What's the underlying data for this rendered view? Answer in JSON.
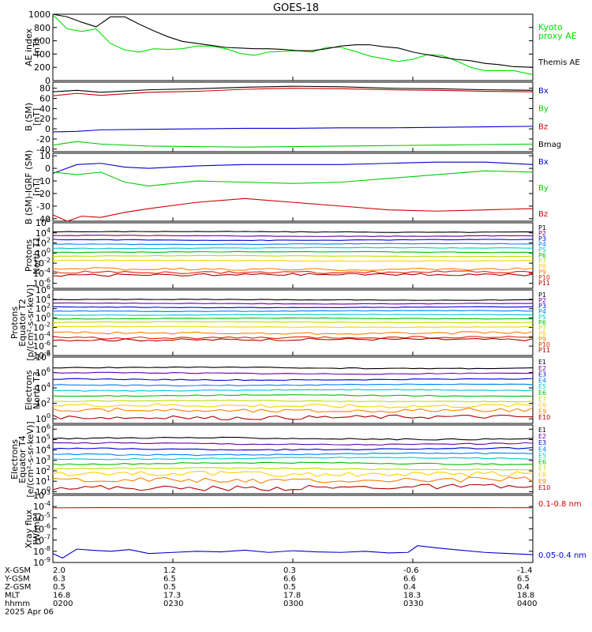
{
  "title": "GOES-18",
  "chart_data": [
    {
      "id": "ae",
      "type": "line",
      "ylabel": [
        "AE index",
        "[nT]"
      ],
      "yticks": [
        "1000",
        "800",
        "600",
        "400",
        "200",
        "0"
      ],
      "yscale": "linear",
      "ylim": [
        0,
        1000
      ],
      "series": [
        {
          "name": "Kyoto\nproxy AE",
          "color": "#00e000",
          "x": [
            0,
            0.03,
            0.06,
            0.09,
            0.12,
            0.15,
            0.18,
            0.21,
            0.24,
            0.27,
            0.3,
            0.33,
            0.36,
            0.39,
            0.42,
            0.45,
            0.48,
            0.51,
            0.54,
            0.57,
            0.6,
            0.63,
            0.66,
            0.69,
            0.72,
            0.75,
            0.78,
            0.81,
            0.84,
            0.87,
            0.9,
            0.93,
            0.96,
            1.0
          ],
          "y": [
            990,
            780,
            740,
            780,
            560,
            460,
            430,
            480,
            470,
            480,
            520,
            520,
            480,
            410,
            380,
            430,
            440,
            450,
            430,
            500,
            500,
            440,
            370,
            330,
            290,
            320,
            390,
            380,
            300,
            200,
            150,
            150,
            150,
            90
          ]
        },
        {
          "name": "Themis AE",
          "color": "#000000",
          "x": [
            0,
            0.03,
            0.06,
            0.09,
            0.12,
            0.15,
            0.18,
            0.21,
            0.24,
            0.27,
            0.3,
            0.33,
            0.36,
            0.39,
            0.42,
            0.45,
            0.48,
            0.51,
            0.54,
            0.57,
            0.6,
            0.63,
            0.66,
            0.69,
            0.72,
            0.75,
            0.78,
            0.81,
            0.84,
            0.87,
            0.9,
            0.93,
            0.96,
            1.0
          ],
          "y": [
            1000,
            960,
            880,
            810,
            960,
            960,
            850,
            750,
            660,
            590,
            560,
            530,
            500,
            490,
            480,
            480,
            470,
            450,
            450,
            480,
            520,
            540,
            540,
            510,
            490,
            430,
            390,
            350,
            320,
            300,
            260,
            240,
            210,
            200
          ]
        }
      ]
    },
    {
      "id": "bsm",
      "type": "line",
      "ylabel": [
        "B (SM)",
        "[nT]"
      ],
      "yticks": [
        "80",
        "60",
        "40",
        "20",
        "0",
        "-20",
        "-40"
      ],
      "yscale": "linear",
      "ylim": [
        -45,
        92
      ],
      "series": [
        {
          "name": "Bx",
          "color": "#0000cc",
          "x": [
            0,
            0.05,
            0.1,
            0.2,
            0.3,
            0.4,
            0.5,
            0.6,
            0.7,
            0.8,
            0.9,
            1.0
          ],
          "y": [
            -6,
            -5,
            -2,
            -1,
            0,
            1,
            1,
            2,
            2,
            3,
            4,
            5
          ]
        },
        {
          "name": "By",
          "color": "#00cc00",
          "x": [
            0,
            0.05,
            0.1,
            0.2,
            0.3,
            0.4,
            0.5,
            0.6,
            0.7,
            0.8,
            0.9,
            1.0
          ],
          "y": [
            -32,
            -25,
            -30,
            -34,
            -35,
            -36,
            -35,
            -34,
            -33,
            -32,
            -31,
            -30
          ]
        },
        {
          "name": "Bz",
          "color": "#cc0000",
          "x": [
            0,
            0.05,
            0.1,
            0.2,
            0.3,
            0.4,
            0.5,
            0.6,
            0.7,
            0.8,
            0.9,
            1.0
          ],
          "y": [
            65,
            70,
            66,
            72,
            74,
            78,
            80,
            79,
            77,
            76,
            74,
            73
          ]
        },
        {
          "name": "Bmag",
          "color": "#000000",
          "x": [
            0,
            0.05,
            0.1,
            0.2,
            0.3,
            0.4,
            0.5,
            0.6,
            0.7,
            0.8,
            0.9,
            1.0
          ],
          "y": [
            73,
            76,
            72,
            77,
            79,
            82,
            84,
            83,
            80,
            79,
            77,
            76
          ]
        }
      ]
    },
    {
      "id": "bigrf",
      "type": "line",
      "ylabel": [
        "B (SM)-IGRF (SM)",
        "[nT]"
      ],
      "yticks": [
        "10",
        "0",
        "-10",
        "-20",
        "-30",
        "-40"
      ],
      "yscale": "linear",
      "ylim": [
        -42,
        12
      ],
      "series": [
        {
          "name": "Bx",
          "color": "#0000cc",
          "x": [
            0,
            0.05,
            0.1,
            0.15,
            0.2,
            0.3,
            0.4,
            0.5,
            0.6,
            0.7,
            0.8,
            0.9,
            1.0
          ],
          "y": [
            -4,
            3,
            4,
            1,
            0,
            2,
            3,
            3,
            3,
            4,
            5,
            5,
            3
          ]
        },
        {
          "name": "By",
          "color": "#00cc00",
          "x": [
            0,
            0.05,
            0.1,
            0.15,
            0.2,
            0.3,
            0.4,
            0.5,
            0.6,
            0.7,
            0.8,
            0.9,
            1.0
          ],
          "y": [
            -3,
            -5,
            -3,
            -11,
            -14,
            -10,
            -11,
            -12,
            -11,
            -8,
            -5,
            -2,
            -3
          ]
        },
        {
          "name": "Bz",
          "color": "#cc0000",
          "x": [
            0,
            0.03,
            0.06,
            0.1,
            0.15,
            0.2,
            0.3,
            0.4,
            0.5,
            0.6,
            0.7,
            0.8,
            0.9,
            1.0
          ],
          "y": [
            -37,
            -42,
            -38,
            -39,
            -35,
            -32,
            -27,
            -24,
            -27,
            -30,
            -33,
            -34,
            -33,
            -32
          ]
        }
      ]
    },
    {
      "id": "protT1",
      "type": "line",
      "ylabel": [
        "Protons",
        "North T1"
      ],
      "yticks": [
        "10^6",
        "10^4",
        "10^2",
        "10^0",
        "10^-2",
        "10^-4",
        "10^-6"
      ],
      "yscale": "log",
      "ylim": [
        -7,
        6
      ],
      "series": [
        {
          "name": "P1",
          "color": "#000000",
          "level": 4.2
        },
        {
          "name": "P2",
          "color": "#6a00a0",
          "level": 3.4
        },
        {
          "name": "P3",
          "color": "#0000dd",
          "level": 2.6
        },
        {
          "name": "P4",
          "color": "#0080ff",
          "level": 1.8
        },
        {
          "name": "P5",
          "color": "#00c8c8",
          "level": 1.0
        },
        {
          "name": "P6",
          "color": "#00c000",
          "level": 0.2
        },
        {
          "name": "P7",
          "color": "#b8e000",
          "level": -0.6
        },
        {
          "name": "P8",
          "color": "#ffd000",
          "level": -1.5
        },
        {
          "name": "P9",
          "color": "#ff8000",
          "level": -3.2
        },
        {
          "name": "P10",
          "color": "#ee2000",
          "level": -3.8
        },
        {
          "name": "P11",
          "color": "#b00000",
          "level": -4.3
        }
      ]
    },
    {
      "id": "protT2",
      "type": "line",
      "ylabel": [
        "Protons",
        "Equator T2",
        "[p/(cm²-s-sr-keV)]"
      ],
      "yticks": [
        "10^6",
        "10^4",
        "10^2",
        "10^0",
        "10^-2",
        "10^-4",
        "10^-6",
        "10^-8"
      ],
      "yscale": "log",
      "ylim": [
        -8,
        6
      ],
      "series": [
        {
          "name": "P1",
          "color": "#000000",
          "level": 3.9
        },
        {
          "name": "P2",
          "color": "#6a00a0",
          "level": 3.1
        },
        {
          "name": "P3",
          "color": "#0000dd",
          "level": 2.3
        },
        {
          "name": "P4",
          "color": "#0080ff",
          "level": 1.5
        },
        {
          "name": "P5",
          "color": "#00c8c8",
          "level": 0.7
        },
        {
          "name": "P6",
          "color": "#00c000",
          "level": -0.1
        },
        {
          "name": "P7",
          "color": "#b8e000",
          "level": -0.9
        },
        {
          "name": "P8",
          "color": "#ffd000",
          "level": -1.9
        },
        {
          "name": "P9",
          "color": "#ff8000",
          "level": -3.2
        },
        {
          "name": "P10",
          "color": "#ee2000",
          "level": -4.2
        },
        {
          "name": "P11",
          "color": "#b00000",
          "level": -4.6
        }
      ]
    },
    {
      "id": "elecT3",
      "type": "line",
      "ylabel": [
        "Electrons",
        "North T3"
      ],
      "yticks": [
        "10^8",
        "10^6",
        "10^4",
        "10^2",
        "10^0"
      ],
      "yscale": "log",
      "ylim": [
        -0.6,
        8
      ],
      "series": [
        {
          "name": "E1",
          "color": "#000000",
          "level": 6.6
        },
        {
          "name": "E2",
          "color": "#6a00a0",
          "level": 5.9
        },
        {
          "name": "E3",
          "color": "#0000dd",
          "level": 5.1
        },
        {
          "name": "E4",
          "color": "#0080ff",
          "level": 4.4
        },
        {
          "name": "E5",
          "color": "#00c8c8",
          "level": 3.7
        },
        {
          "name": "E6",
          "color": "#00c000",
          "level": 3.0
        },
        {
          "name": "E7",
          "color": "#b8e000",
          "level": 2.3
        },
        {
          "name": "E8",
          "color": "#ffd000",
          "level": 1.7
        },
        {
          "name": "E9",
          "color": "#ff8000",
          "level": 1.1
        },
        {
          "name": "E10",
          "color": "#b00000",
          "level": 0.2
        }
      ]
    },
    {
      "id": "elecT4",
      "type": "line",
      "ylabel": [
        "Electrons",
        "Equator T4",
        "[e/(cm²-s-sr-keV)]"
      ],
      "yticks": [
        "10^6",
        "10^5",
        "10^4",
        "10^3",
        "10^2",
        "10^1",
        "10^0"
      ],
      "yscale": "log",
      "ylim": [
        -0.2,
        6.4
      ],
      "series": [
        {
          "name": "E1",
          "color": "#000000",
          "level": 5.1
        },
        {
          "name": "E2",
          "color": "#6a00a0",
          "level": 4.6
        },
        {
          "name": "E3",
          "color": "#0000dd",
          "level": 4.1
        },
        {
          "name": "E4",
          "color": "#0080ff",
          "level": 3.6
        },
        {
          "name": "E5",
          "color": "#00c8c8",
          "level": 3.2
        },
        {
          "name": "E6",
          "color": "#00c000",
          "level": 2.7
        },
        {
          "name": "E7",
          "color": "#b8e000",
          "level": 2.2
        },
        {
          "name": "E8",
          "color": "#ffd000",
          "level": 1.7
        },
        {
          "name": "E9",
          "color": "#ff8000",
          "level": 1.1
        },
        {
          "name": "E10",
          "color": "#b00000",
          "level": 0.4
        }
      ]
    },
    {
      "id": "xray",
      "type": "line",
      "ylabel": [
        "Xray flux",
        "[W/m2]"
      ],
      "yticks": [
        "10^-3",
        "10^-4",
        "10^-5",
        "10^-6",
        "10^-7",
        "10^-8",
        "10^-9"
      ],
      "yscale": "log",
      "ylim": [
        -9,
        -3
      ],
      "series": [
        {
          "name": "0.1-0.8 nm",
          "color": "#dd0000",
          "x": [
            0,
            0.1,
            0.2,
            0.3,
            0.4,
            0.5,
            0.6,
            0.7,
            0.8,
            0.9,
            1.0
          ],
          "y": [
            -4.12,
            -4.1,
            -4.11,
            -4.1,
            -4.09,
            -4.1,
            -4.11,
            -4.1,
            -4.09,
            -4.1,
            -4.11
          ]
        },
        {
          "name": "0.05-0.4 nm",
          "color": "#0000cc",
          "x": [
            0,
            0.02,
            0.05,
            0.08,
            0.12,
            0.16,
            0.2,
            0.25,
            0.3,
            0.35,
            0.4,
            0.45,
            0.5,
            0.55,
            0.6,
            0.65,
            0.7,
            0.74,
            0.76,
            0.8,
            0.85,
            0.9,
            0.95,
            1.0
          ],
          "y": [
            -8.2,
            -8.6,
            -7.8,
            -7.9,
            -8.0,
            -7.85,
            -8.2,
            -8.1,
            -8.0,
            -8.05,
            -7.9,
            -8.1,
            -7.95,
            -8.05,
            -8.1,
            -8.0,
            -8.15,
            -8.1,
            -7.5,
            -7.7,
            -7.9,
            -8.1,
            -8.2,
            -8.3
          ]
        }
      ]
    }
  ],
  "x_axis": {
    "row_labels": [
      "X-GSM",
      "Y-GSM",
      "Z-GSM",
      "MLT",
      "hhmm",
      "2025 Apr 06"
    ],
    "ticks": [
      {
        "values": [
          "2.0",
          "6.3",
          "0.5",
          "16.8",
          "0200"
        ]
      },
      {
        "values": [
          "1.2",
          "6.5",
          "0.5",
          "17.3",
          "0230"
        ]
      },
      {
        "values": [
          "0.3",
          "6.6",
          "0.5",
          "17.8",
          "0300"
        ]
      },
      {
        "values": [
          "-0.6",
          "6.6",
          "0.4",
          "18.3",
          "0330"
        ]
      },
      {
        "values": [
          "-1.4",
          "6.5",
          "0.4",
          "18.8",
          "0400"
        ]
      }
    ]
  },
  "ae_legend": {
    "kyoto": "Kyoto\nproxy AE",
    "themis": "Themis AE"
  }
}
